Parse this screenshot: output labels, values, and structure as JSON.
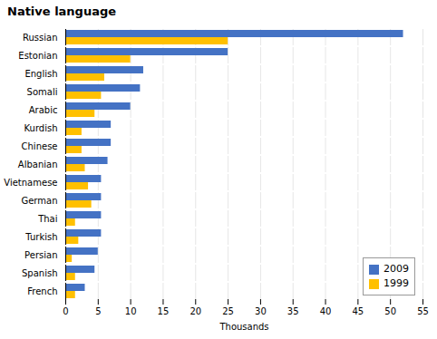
{
  "chart_data": {
    "type": "bar",
    "orientation": "horizontal",
    "title": "Native language",
    "xlabel": "Thousands",
    "categories": [
      "Russian",
      "Estonian",
      "English",
      "Somali",
      "Arabic",
      "Kurdish",
      "Chinese",
      "Albanian",
      "Vietnamese",
      "German",
      "Thai",
      "Turkish",
      "Persian",
      "Spanish",
      "French"
    ],
    "series": [
      {
        "name": "2009",
        "color": "#4472C4",
        "values": [
          52,
          25,
          12,
          11.5,
          10,
          7,
          7,
          6.5,
          5.5,
          5.5,
          5.5,
          5.5,
          5,
          4.5,
          3
        ]
      },
      {
        "name": "1999",
        "color": "#FFC000",
        "values": [
          25,
          10,
          6,
          5.5,
          4.5,
          2.5,
          2.5,
          3,
          3.5,
          4,
          1.5,
          2,
          1,
          1.5,
          1.5
        ]
      }
    ],
    "xlim": [
      0,
      55
    ],
    "xticks": [
      0,
      5,
      10,
      15,
      20,
      25,
      30,
      35,
      40,
      45,
      50,
      55
    ],
    "grid": true,
    "legend": "lower right"
  }
}
